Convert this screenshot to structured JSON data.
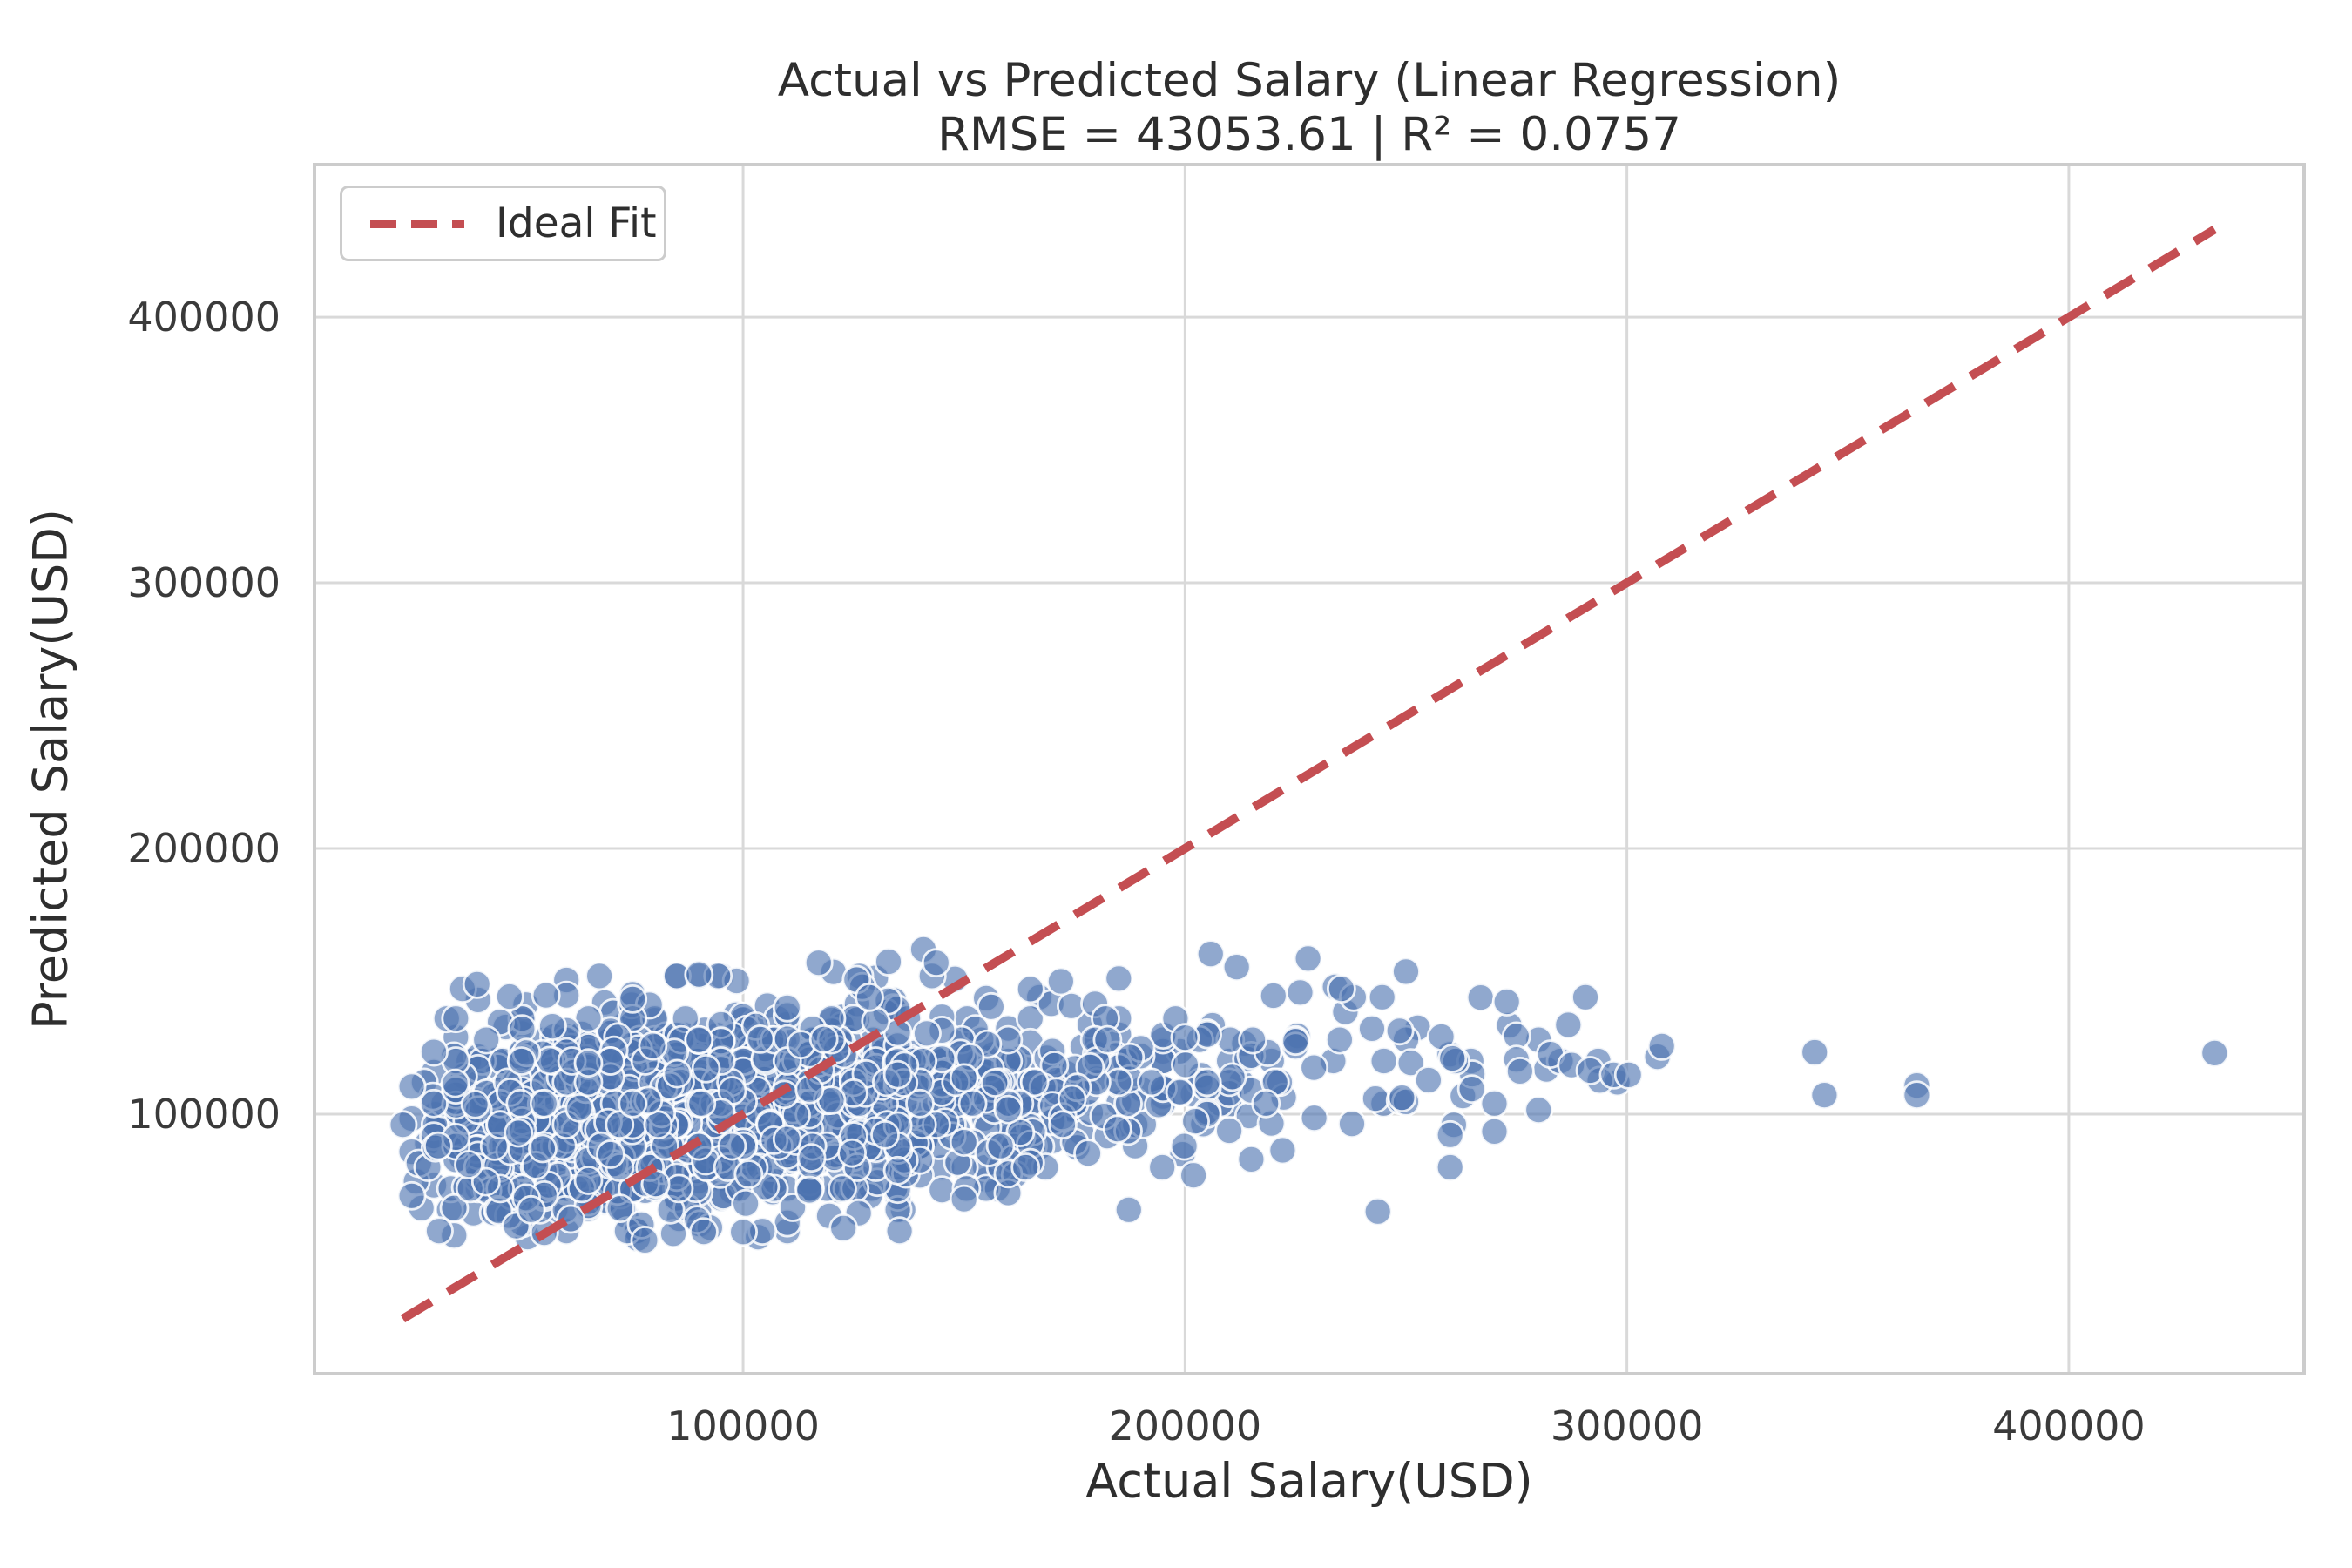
{
  "title": {
    "line1": "Actual vs Predicted Salary (Linear Regression)",
    "line2": "RMSE = 43053.61 | R² = 0.0757"
  },
  "metrics": {
    "rmse": 43053.61,
    "r2": 0.0757
  },
  "legend": {
    "position": "upper left",
    "items": [
      {
        "label": "Ideal Fit",
        "color": "#c44e52",
        "style": "dashed"
      }
    ]
  },
  "colors": {
    "scatter_fill": "#4c72b0",
    "scatter_edge": "#ffffff",
    "line": "#c44e52",
    "grid": "#d9d9d9",
    "plot_border": "#cccccc",
    "background": "#ffffff",
    "text": "#2e2e2e",
    "tick_text": "#3a3a3a"
  },
  "chart_data": {
    "type": "scatter",
    "title": "Actual vs Predicted Salary (Linear Regression)",
    "subtitle": "RMSE = 43053.61 | R² = 0.0757",
    "xlabel": "Actual Salary(USD)",
    "ylabel": "Predicted Salary(USD)",
    "grid": true,
    "xlim": [
      3000,
      453240
    ],
    "ylim": [
      2300,
      457400
    ],
    "x_ticks": [
      100000,
      200000,
      300000,
      400000
    ],
    "y_ticks": [
      100000,
      200000,
      300000,
      400000
    ],
    "x_tick_labels": [
      "100000",
      "200000",
      "300000",
      "400000"
    ],
    "y_tick_labels": [
      "100000",
      "200000",
      "300000",
      "400000"
    ],
    "ideal_fit_line": {
      "label": "Ideal Fit",
      "x": [
        23000,
        433000
      ],
      "y": [
        23000,
        433000
      ],
      "color": "#c44e52",
      "dash": [
        38,
        22
      ],
      "width": 10
    },
    "scatter": {
      "marker": {
        "radius": 15.5,
        "fill": "#4c72b0",
        "fill_opacity": 0.62,
        "edge": "#ffffff",
        "edge_opacity": 0.85,
        "edge_width": 2.8
      },
      "cloud_model": {
        "comment": "dense cloud of ~1700 pts: x lognormal (median ~92k, clipped 19.5k-303k), predicted = 90000 + 0.115*actual + N(0,18200), clipped 52k-161k; partial salary rounding",
        "n": 1700,
        "seed": 42,
        "x_log_mean": 11.43,
        "x_log_sd": 0.5,
        "x_clip": [
          19500,
          303000
        ],
        "y_intercept": 90000,
        "y_slope": 0.115,
        "y_sd": 18200,
        "y_clip": [
          52000,
          161000
        ],
        "x_round_frac": 0.38,
        "x_round_step": 5000,
        "y_round_frac": 0.3,
        "y_round_step": 8000
      },
      "tail_points": [
        [
          249100,
          106200
        ],
        [
          251100,
          119300
        ],
        [
          255100,
          112800
        ],
        [
          258000,
          129200
        ],
        [
          260500,
          121000
        ],
        [
          264900,
          109500
        ],
        [
          266900,
          143900
        ],
        [
          272800,
          142300
        ],
        [
          275800,
          116100
        ],
        [
          282700,
          122600
        ],
        [
          287500,
          118500
        ],
        [
          291700,
          116400
        ],
        [
          297000,
          114800
        ],
        [
          300400,
          114800
        ],
        [
          306900,
          121600
        ],
        [
          307900,
          125600
        ],
        [
          342500,
          123300
        ],
        [
          344700,
          107200
        ],
        [
          365600,
          110800
        ],
        [
          365600,
          107200
        ],
        [
          433000,
          123000
        ]
      ],
      "outlier_points": [
        [
          36500,
          147200
        ],
        [
          39800,
          148900
        ],
        [
          117100,
          157000
        ],
        [
          132900,
          157400
        ],
        [
          140800,
          162000
        ],
        [
          143700,
          157000
        ],
        [
          205800,
          160300
        ],
        [
          211700,
          155400
        ],
        [
          235400,
          147200
        ],
        [
          52000,
          64000
        ],
        [
          61000,
          60500
        ],
        [
          77000,
          58400
        ],
        [
          77800,
          52500
        ],
        [
          89600,
          60300
        ],
        [
          91100,
          55700
        ],
        [
          119500,
          61700
        ],
        [
          122700,
          57100
        ],
        [
          150000,
          68000
        ]
      ]
    }
  }
}
